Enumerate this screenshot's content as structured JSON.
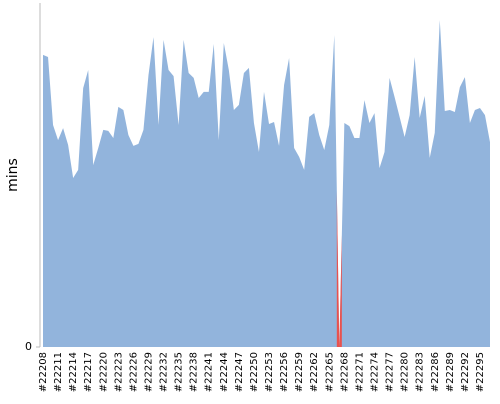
{
  "chart_data": {
    "type": "area",
    "y_label": "mins",
    "categories": [
      "#22208",
      null,
      null,
      "#22211",
      null,
      null,
      "#22214",
      null,
      null,
      "#22217",
      null,
      null,
      "#22220",
      null,
      null,
      "#22223",
      null,
      null,
      "#22226",
      null,
      null,
      "#22229",
      null,
      null,
      "#22232",
      null,
      null,
      "#22235",
      null,
      null,
      "#22238",
      null,
      null,
      "#22241",
      null,
      null,
      "#22244",
      null,
      null,
      "#22247",
      null,
      null,
      "#22250",
      null,
      null,
      "#22253",
      null,
      null,
      "#22256",
      null,
      null,
      "#22259",
      null,
      null,
      "#22262",
      null,
      null,
      "#22265",
      null,
      null,
      "#22268",
      null,
      null,
      "#22271",
      null,
      null,
      "#22274",
      null,
      null,
      "#22277",
      null,
      null,
      "#22280",
      null,
      null,
      "#22283",
      null,
      null,
      "#22286",
      null,
      null,
      "#22289",
      null,
      null,
      "#22292",
      null,
      null,
      "#22295",
      null,
      null
    ],
    "values": [
      85.4,
      84.8,
      64.9,
      60.5,
      64.0,
      59.1,
      49.4,
      51.8,
      75.7,
      81.0,
      53.2,
      58.2,
      63.5,
      63.2,
      61.1,
      70.2,
      69.3,
      62.0,
      58.8,
      59.4,
      63.5,
      79.5,
      90.6,
      64.9,
      89.8,
      81.0,
      79.2,
      64.9,
      89.8,
      80.1,
      78.7,
      72.8,
      74.6,
      74.6,
      88.6,
      60.5,
      88.9,
      81.0,
      69.3,
      70.8,
      80.1,
      81.6,
      65.5,
      57.0,
      74.6,
      65.2,
      65.8,
      58.8,
      76.6,
      84.5,
      58.2,
      55.6,
      51.8,
      67.3,
      68.4,
      62.0,
      57.6,
      64.9,
      91.2,
      0,
      65.5,
      64.6,
      61.1,
      61.1,
      72.2,
      65.5,
      68.4,
      52.3,
      57.0,
      78.7,
      73.1,
      67.3,
      61.4,
      67.8,
      84.8,
      67.0,
      73.4,
      55.3,
      62.6,
      95.6,
      69.0,
      69.3,
      68.7,
      76.0,
      78.9,
      65.5,
      69.3,
      69.9,
      67.8,
      59.9
    ],
    "color": "#92b4dc",
    "point_colors": [
      "#92b4dc",
      "#92b4dc",
      "#92b4dc",
      "#92b4dc",
      "#92b4dc",
      "#92b4dc",
      "#92b4dc",
      "#92b4dc",
      "#92b4dc",
      "#92b4dc",
      "#92b4dc",
      "#92b4dc",
      "#92b4dc",
      "#92b4dc",
      "#92b4dc",
      "#92b4dc",
      "#92b4dc",
      "#92b4dc",
      "#92b4dc",
      "#92b4dc",
      "#92b4dc",
      "#92b4dc",
      "#92b4dc",
      "#92b4dc",
      "#92b4dc",
      "#92b4dc",
      "#92b4dc",
      "#92b4dc",
      "#92b4dc",
      "#92b4dc",
      "#92b4dc",
      "#92b4dc",
      "#92b4dc",
      "#92b4dc",
      "#92b4dc",
      "#92b4dc",
      "#92b4dc",
      "#92b4dc",
      "#92b4dc",
      "#92b4dc",
      "#92b4dc",
      "#92b4dc",
      "#92b4dc",
      "#92b4dc",
      "#92b4dc",
      "#92b4dc",
      "#92b4dc",
      "#92b4dc",
      "#92b4dc",
      "#92b4dc",
      "#92b4dc",
      "#92b4dc",
      "#92b4dc",
      "#92b4dc",
      "#92b4dc",
      "#92b4dc",
      "#92b4dc",
      "#92b4dc",
      "#92b4dc",
      "#e8524f",
      "#92b4dc",
      "#92b4dc",
      "#92b4dc",
      "#92b4dc",
      "#92b4dc",
      "#92b4dc",
      "#92b4dc",
      "#92b4dc",
      "#92b4dc",
      "#92b4dc",
      "#92b4dc",
      "#92b4dc",
      "#92b4dc",
      "#92b4dc",
      "#92b4dc",
      "#92b4dc",
      "#92b4dc",
      "#92b4dc",
      "#92b4dc",
      "#92b4dc",
      "#92b4dc",
      "#92b4dc",
      "#92b4dc",
      "#92b4dc",
      "#92b4dc",
      "#92b4dc",
      "#92b4dc",
      "#92b4dc",
      "#92b4dc",
      "#92b4dc"
    ],
    "ylim": [
      0,
      100
    ],
    "yticks": [
      0
    ]
  }
}
